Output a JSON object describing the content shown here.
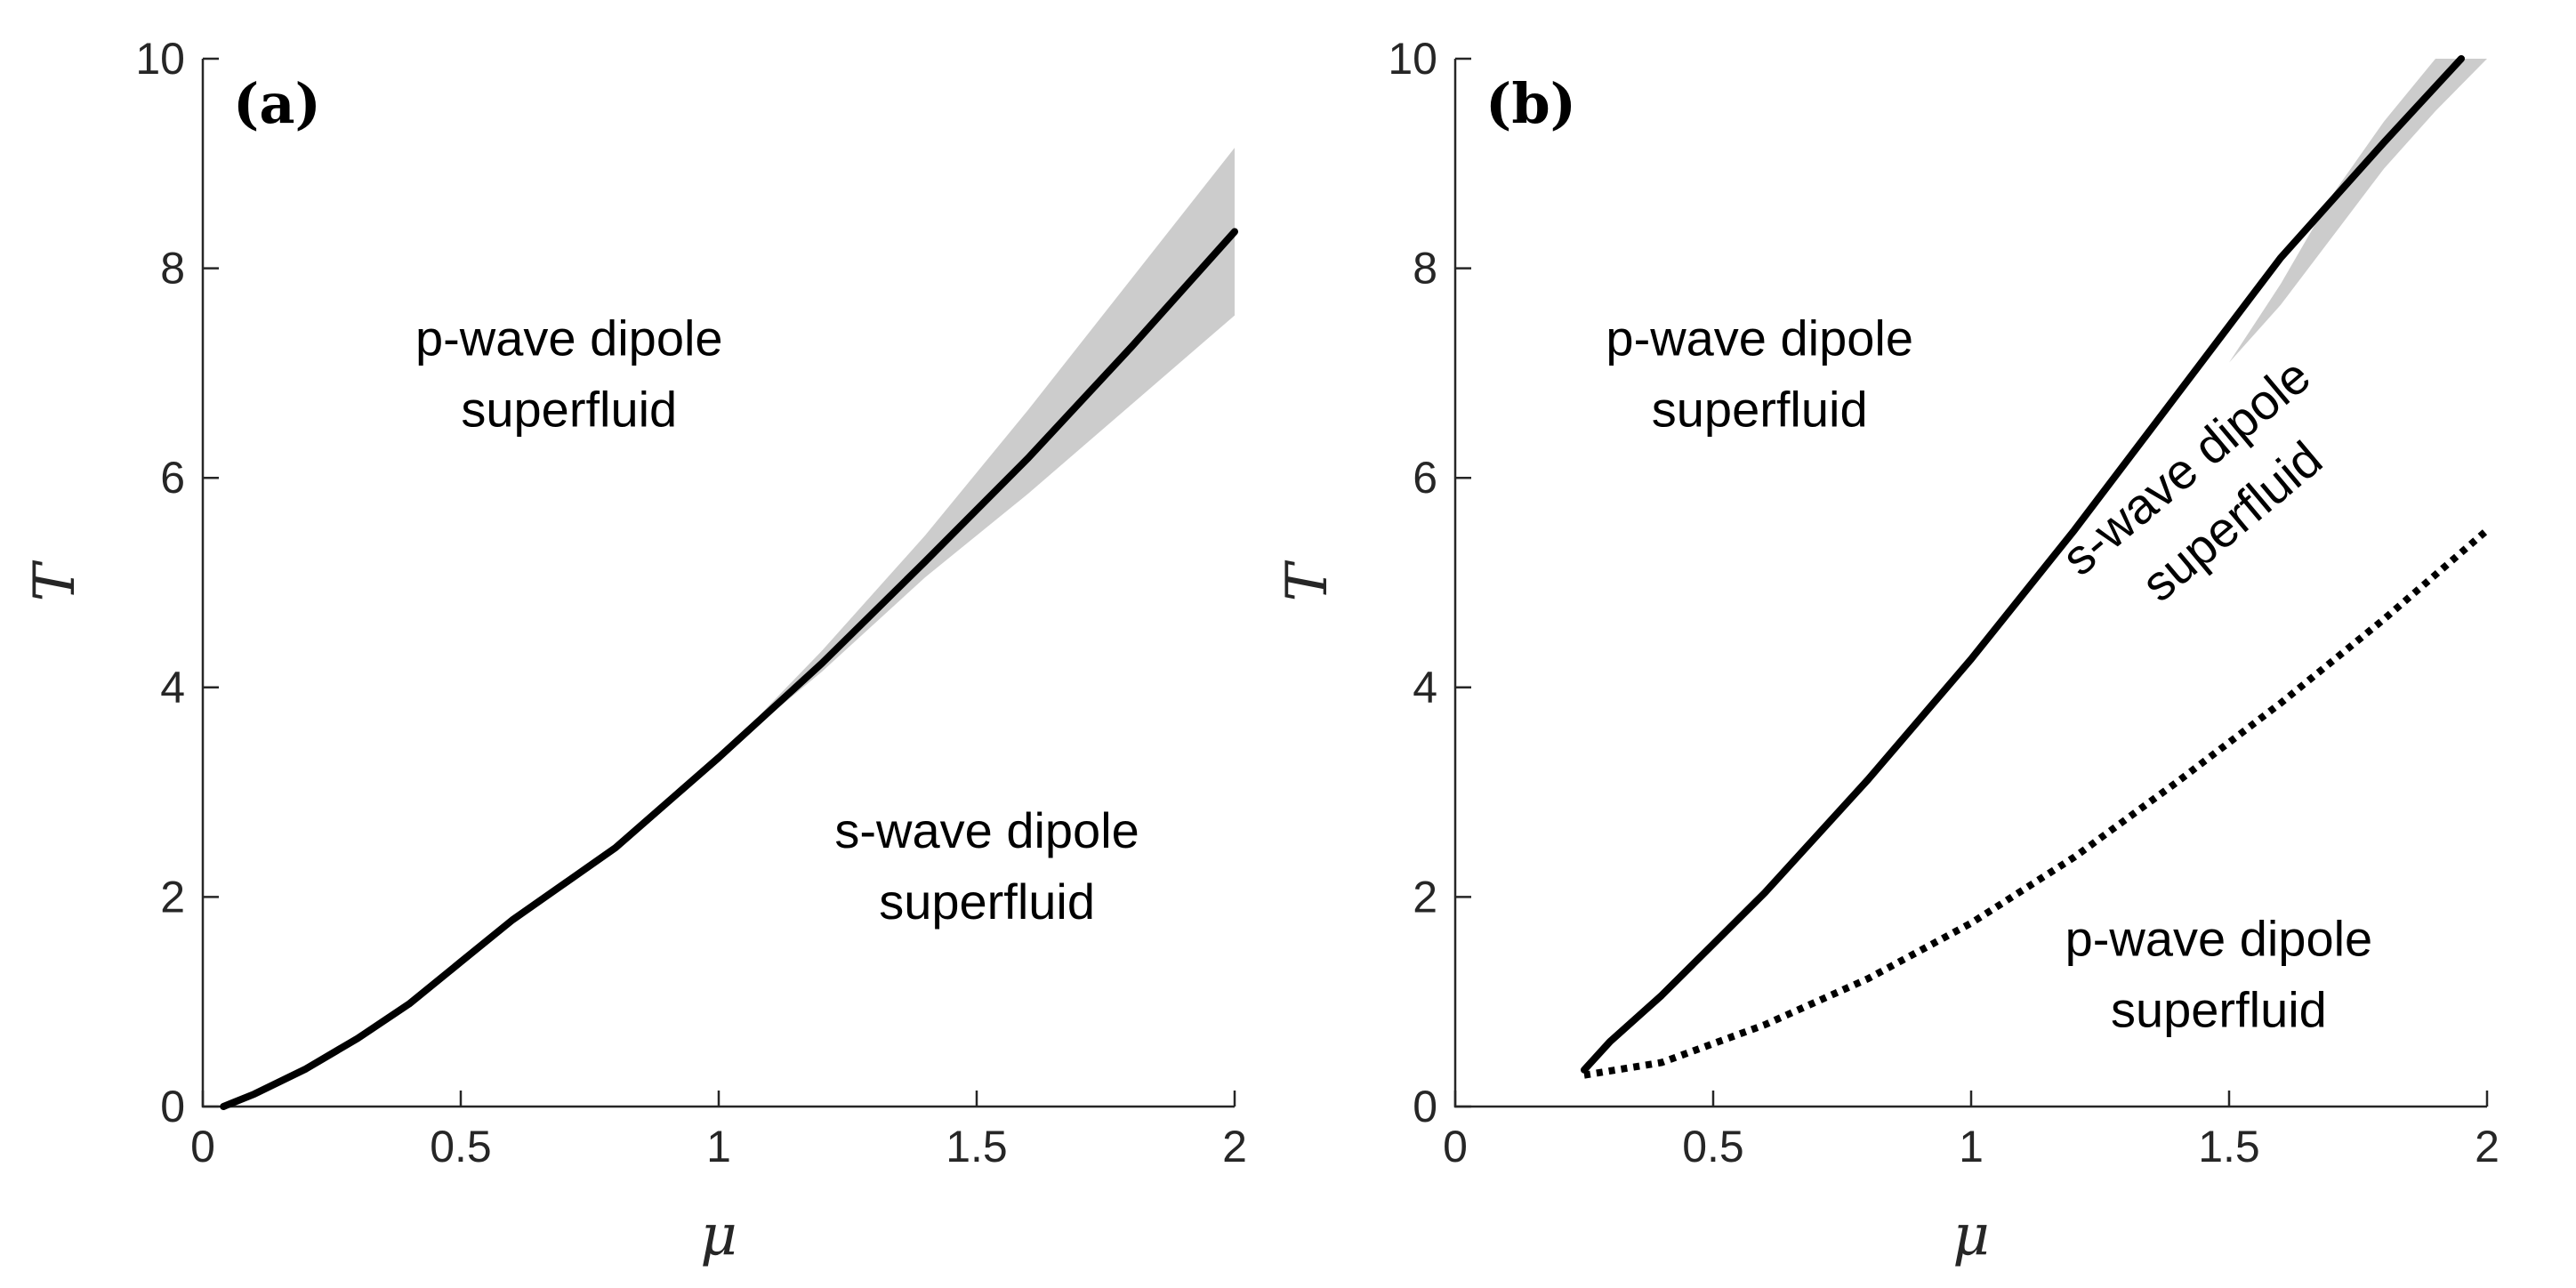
{
  "chart_data": [
    {
      "type": "line",
      "panel_label": "(a)",
      "xlabel": "μ",
      "ylabel": "T",
      "xlim": [
        0,
        2
      ],
      "ylim": [
        0,
        10
      ],
      "xticks": [
        0,
        0.5,
        1,
        1.5,
        2
      ],
      "xtick_labels": [
        "0",
        "0.5",
        "1",
        "1.5",
        "2"
      ],
      "yticks": [
        0,
        2,
        4,
        6,
        8,
        10
      ],
      "ytick_labels": [
        "0",
        "2",
        "4",
        "6",
        "8",
        "10"
      ],
      "grid": false,
      "series": [
        {
          "style": "solid",
          "color": "#000000",
          "x": [
            0.04,
            0.1,
            0.2,
            0.3,
            0.4,
            0.5,
            0.6,
            0.8,
            1.0,
            1.2,
            1.4,
            1.6,
            1.8,
            2.0
          ],
          "y": [
            0.0,
            0.12,
            0.36,
            0.65,
            0.98,
            1.38,
            1.78,
            2.47,
            3.33,
            4.23,
            5.2,
            6.19,
            7.25,
            8.35
          ]
        }
      ],
      "bands": [
        {
          "color": "#cccccc",
          "x": [
            1.0,
            1.2,
            1.4,
            1.6,
            1.8,
            2.0
          ],
          "lower": [
            3.33,
            4.15,
            5.05,
            5.85,
            6.7,
            7.55
          ],
          "upper": [
            3.33,
            4.35,
            5.45,
            6.65,
            7.9,
            9.15
          ]
        }
      ],
      "annotations": [
        {
          "lines": [
            "p-wave dipole",
            "superfluid"
          ],
          "x": 0.71,
          "y": 7.0,
          "rotation": 0
        },
        {
          "lines": [
            "s-wave dipole",
            "superfluid"
          ],
          "x": 1.52,
          "y": 2.3,
          "rotation": 0
        }
      ]
    },
    {
      "type": "line",
      "panel_label": "(b)",
      "xlabel": "μ",
      "ylabel": "T",
      "xlim": [
        0,
        2
      ],
      "ylim": [
        0,
        10
      ],
      "xticks": [
        0,
        0.5,
        1,
        1.5,
        2
      ],
      "xtick_labels": [
        "0",
        "0.5",
        "1",
        "1.5",
        "2"
      ],
      "yticks": [
        0,
        2,
        4,
        6,
        8,
        10
      ],
      "ytick_labels": [
        "0",
        "2",
        "4",
        "6",
        "8",
        "10"
      ],
      "grid": false,
      "series": [
        {
          "style": "solid",
          "color": "#000000",
          "x": [
            0.25,
            0.3,
            0.4,
            0.5,
            0.6,
            0.8,
            1.0,
            1.2,
            1.4,
            1.6,
            1.8,
            1.95
          ],
          "y": [
            0.35,
            0.62,
            1.06,
            1.55,
            2.04,
            3.12,
            4.27,
            5.5,
            6.8,
            8.1,
            9.2,
            10.0
          ]
        },
        {
          "style": "dotted",
          "color": "#000000",
          "x": [
            0.25,
            0.4,
            0.6,
            0.8,
            1.0,
            1.2,
            1.4,
            1.6,
            1.8,
            2.0
          ],
          "y": [
            0.3,
            0.42,
            0.78,
            1.22,
            1.75,
            2.38,
            3.1,
            3.85,
            4.65,
            5.5
          ]
        }
      ],
      "bands": [
        {
          "color": "#cccccc",
          "x": [
            1.5,
            1.6,
            1.7,
            1.8,
            1.9,
            2.0
          ],
          "lower": [
            7.1,
            7.65,
            8.3,
            8.95,
            9.5,
            10.0
          ],
          "upper": [
            7.1,
            7.85,
            8.7,
            9.4,
            10.0,
            10.0
          ]
        }
      ],
      "annotations": [
        {
          "lines": [
            "p-wave dipole",
            "superfluid"
          ],
          "x": 0.59,
          "y": 7.0,
          "rotation": 0
        },
        {
          "lines": [
            "s-wave dipole",
            "superfluid"
          ],
          "x": 1.46,
          "y": 5.85,
          "rotation": -40
        },
        {
          "lines": [
            "p-wave dipole",
            "superfluid"
          ],
          "x": 1.48,
          "y": 1.27,
          "rotation": 0
        }
      ]
    }
  ]
}
